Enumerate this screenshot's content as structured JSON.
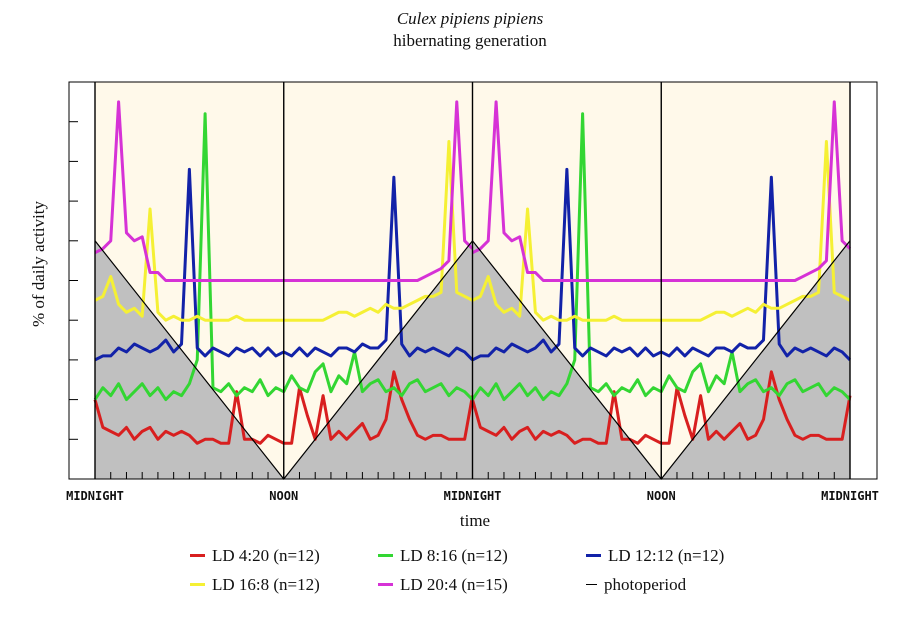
{
  "chart_data": {
    "type": "line",
    "title": "Culex pipiens pipiens",
    "subtitle": "hibernating generation",
    "xlabel": "time",
    "ylabel": "% of daily activity",
    "x_tick_labels": [
      "MIDNIGHT",
      "NOON",
      "MIDNIGHT",
      "NOON",
      "MIDNIGHT"
    ],
    "x_range_hours": [
      0,
      48
    ],
    "grid": false,
    "legend_position": "bottom",
    "colors": {
      "LD 4:20 (n=12)": "#d81f1f",
      "LD 8:16 (n=12)": "#33d633",
      "LD 12:12 (n=12)": "#1222a8",
      "LD 16:8 (n=12)": "#f5f034",
      "LD 20:4 (n=15)": "#d632d6",
      "photoperiod": "#000000",
      "night_shade": "#c0c0c0",
      "day_fill": "#fff9ea"
    },
    "series": [
      {
        "name": "LD 4:20 (n=12)",
        "x": [
          0,
          0.5,
          1,
          1.5,
          2,
          2.5,
          3,
          3.5,
          4,
          4.5,
          5,
          5.5,
          6,
          6.5,
          7,
          7.5,
          8,
          8.5,
          9,
          9.5,
          10,
          10.5,
          11,
          11.5,
          12,
          12.5,
          13,
          13.5,
          14,
          14.5,
          15,
          15.5,
          16,
          16.5,
          17,
          17.5,
          18,
          18.5,
          19,
          19.5,
          20,
          20.5,
          21,
          21.5,
          22,
          22.5,
          23,
          23.5,
          24
        ],
        "y": [
          2.0,
          1.3,
          1.2,
          1.1,
          1.3,
          1.0,
          1.2,
          1.3,
          1.0,
          1.2,
          1.1,
          1.2,
          1.1,
          0.9,
          1.0,
          1.0,
          0.9,
          0.9,
          2.2,
          1.0,
          1.0,
          0.9,
          1.1,
          1.0,
          0.9,
          0.9,
          2.3,
          1.6,
          1.0,
          2.1,
          1.0,
          1.2,
          1.0,
          1.2,
          1.4,
          1.0,
          1.1,
          1.5,
          2.7,
          2.0,
          1.5,
          1.1,
          1.0,
          1.1,
          1.1,
          1.0,
          1.0,
          1.0,
          2.1
        ]
      },
      {
        "name": "LD 8:16 (n=12)",
        "x": [
          0,
          0.5,
          1,
          1.5,
          2,
          2.5,
          3,
          3.5,
          4,
          4.5,
          5,
          5.5,
          6,
          6.5,
          7,
          7.5,
          8,
          8.5,
          9,
          9.5,
          10,
          10.5,
          11,
          11.5,
          12,
          12.5,
          13,
          13.5,
          14,
          14.5,
          15,
          15.5,
          16,
          16.5,
          17,
          17.5,
          18,
          18.5,
          19,
          19.5,
          20,
          20.5,
          21,
          21.5,
          22,
          22.5,
          23,
          23.5,
          24
        ],
        "y": [
          2.0,
          2.3,
          2.1,
          2.4,
          2.0,
          2.2,
          2.4,
          2.1,
          2.3,
          2.0,
          2.2,
          2.1,
          2.4,
          3.0,
          9.2,
          2.3,
          2.2,
          2.4,
          2.1,
          2.3,
          2.2,
          2.5,
          2.1,
          2.3,
          2.2,
          2.6,
          2.3,
          2.2,
          2.7,
          2.9,
          2.2,
          2.6,
          2.4,
          3.2,
          2.2,
          2.4,
          2.5,
          2.2,
          2.3,
          2.1,
          2.4,
          2.5,
          2.2,
          2.3,
          2.4,
          2.1,
          2.3,
          2.2,
          2.0
        ]
      },
      {
        "name": "LD 12:12 (n=12)",
        "x": [
          0,
          0.5,
          1,
          1.5,
          2,
          2.5,
          3,
          3.5,
          4,
          4.5,
          5,
          5.5,
          6,
          6.5,
          7,
          7.5,
          8,
          8.5,
          9,
          9.5,
          10,
          10.5,
          11,
          11.5,
          12,
          12.5,
          13,
          13.5,
          14,
          14.5,
          15,
          15.5,
          16,
          16.5,
          17,
          17.5,
          18,
          18.5,
          19,
          19.5,
          20,
          20.5,
          21,
          21.5,
          22,
          22.5,
          23,
          23.5,
          24
        ],
        "y": [
          3.0,
          3.1,
          3.1,
          3.3,
          3.2,
          3.4,
          3.3,
          3.2,
          3.3,
          3.5,
          3.2,
          3.4,
          7.8,
          3.3,
          3.1,
          3.3,
          3.2,
          3.1,
          3.3,
          3.2,
          3.3,
          3.1,
          3.3,
          3.1,
          3.2,
          3.1,
          3.3,
          3.1,
          3.3,
          3.2,
          3.1,
          3.3,
          3.3,
          3.2,
          3.4,
          3.3,
          3.3,
          3.5,
          7.6,
          3.4,
          3.1,
          3.3,
          3.2,
          3.3,
          3.2,
          3.1,
          3.3,
          3.2,
          3.0
        ]
      },
      {
        "name": "LD 16:8 (n=12)",
        "x": [
          0,
          0.5,
          1,
          1.5,
          2,
          2.5,
          3,
          3.5,
          4,
          4.5,
          5,
          5.5,
          6,
          6.5,
          7,
          7.5,
          8,
          8.5,
          9,
          9.5,
          10,
          10.5,
          11,
          11.5,
          12,
          12.5,
          13,
          13.5,
          14,
          14.5,
          15,
          15.5,
          16,
          16.5,
          17,
          17.5,
          18,
          18.5,
          19,
          19.5,
          20,
          20.5,
          21,
          21.5,
          22,
          22.5,
          23,
          23.5,
          24
        ],
        "y": [
          4.5,
          4.6,
          5.1,
          4.4,
          4.2,
          4.3,
          4.1,
          6.8,
          4.2,
          4.0,
          4.1,
          4.0,
          4.0,
          4.1,
          4.0,
          4.0,
          4.0,
          4.0,
          4.1,
          4.0,
          4.0,
          4.0,
          4.0,
          4.0,
          4.0,
          4.0,
          4.0,
          4.0,
          4.0,
          4.0,
          4.1,
          4.2,
          4.2,
          4.1,
          4.2,
          4.3,
          4.2,
          4.4,
          4.3,
          4.3,
          4.4,
          4.5,
          4.6,
          4.6,
          4.7,
          8.5,
          4.7,
          4.6,
          4.5
        ]
      },
      {
        "name": "LD 20:4 (n=15)",
        "x": [
          0,
          0.5,
          1,
          1.5,
          2,
          2.5,
          3,
          3.5,
          4,
          4.5,
          5,
          5.5,
          6,
          6.5,
          7,
          7.5,
          8,
          8.5,
          9,
          9.5,
          10,
          10.5,
          11,
          11.5,
          12,
          12.5,
          13,
          13.5,
          14,
          14.5,
          15,
          15.5,
          16,
          16.5,
          17,
          17.5,
          18,
          18.5,
          19,
          19.5,
          20,
          20.5,
          21,
          21.5,
          22,
          22.5,
          23,
          23.5,
          24
        ],
        "y": [
          5.7,
          5.8,
          6.0,
          9.5,
          6.2,
          6.0,
          6.1,
          5.2,
          5.2,
          5.0,
          5.0,
          5.0,
          5.0,
          5.0,
          5.0,
          5.0,
          5.0,
          5.0,
          5.0,
          5.0,
          5.0,
          5.0,
          5.0,
          5.0,
          5.0,
          5.0,
          5.0,
          5.0,
          5.0,
          5.0,
          5.0,
          5.0,
          5.0,
          5.0,
          5.0,
          5.0,
          5.0,
          5.0,
          5.0,
          5.0,
          5.0,
          5.0,
          5.1,
          5.2,
          5.3,
          5.5,
          9.5,
          6.0,
          5.8
        ]
      }
    ],
    "photoperiod": {
      "name": "photoperiod",
      "x": [
        0,
        12,
        24,
        36,
        48
      ],
      "y": [
        6,
        0,
        6,
        0,
        6
      ]
    }
  },
  "legend": {
    "rows": [
      [
        {
          "label": "LD 4:20 (n=12)",
          "color": "#d81f1f"
        },
        {
          "label": "LD 8:16 (n=12)",
          "color": "#33d633"
        },
        {
          "label": "LD 12:12 (n=12)",
          "color": "#1222a8"
        }
      ],
      [
        {
          "label": "LD 16:8 (n=12)",
          "color": "#f5f034"
        },
        {
          "label": "LD 20:4 (n=15)",
          "color": "#d632d6"
        },
        {
          "label": "photoperiod",
          "color": "#000000"
        }
      ]
    ]
  }
}
